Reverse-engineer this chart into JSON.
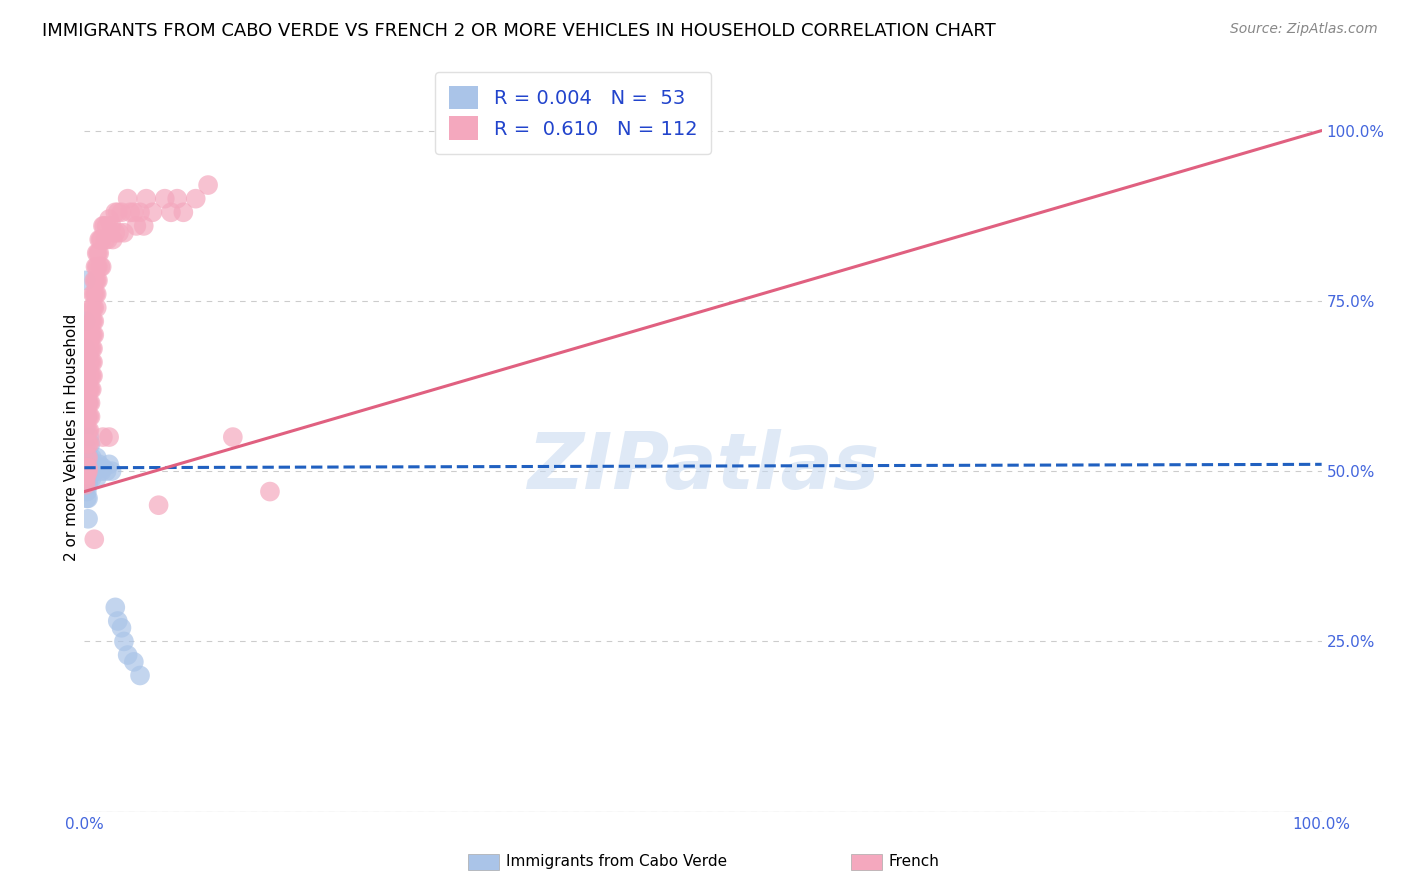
{
  "title": "IMMIGRANTS FROM CABO VERDE VS FRENCH 2 OR MORE VEHICLES IN HOUSEHOLD CORRELATION CHART",
  "source": "Source: ZipAtlas.com",
  "ylabel": "2 or more Vehicles in Household",
  "watermark": "ZIPatlas",
  "blue_R": 0.004,
  "blue_N": 53,
  "pink_R": 0.61,
  "pink_N": 112,
  "blue_color": "#aac4e8",
  "pink_color": "#f4a8be",
  "blue_line_color": "#2060c0",
  "pink_line_color": "#e06080",
  "blue_trend": [
    0.0,
    1.0,
    0.505,
    0.51
  ],
  "pink_trend": [
    0.0,
    1.0,
    0.47,
    1.0
  ],
  "xlim": [
    0.0,
    1.0
  ],
  "ylim": [
    0.0,
    1.1
  ],
  "ytick_positions": [
    0.0,
    0.25,
    0.5,
    0.75,
    1.0
  ],
  "ytick_labels": [
    "",
    "25.0%",
    "50.0%",
    "75.0%",
    "100.0%"
  ],
  "grid_color": "#cccccc",
  "background_color": "#ffffff",
  "title_fontsize": 13,
  "axis_label_color": "#4466dd",
  "blue_scatter_x": [
    0.001,
    0.001,
    0.001,
    0.001,
    0.001,
    0.001,
    0.001,
    0.001,
    0.001,
    0.001,
    0.002,
    0.002,
    0.002,
    0.002,
    0.002,
    0.002,
    0.002,
    0.002,
    0.002,
    0.002,
    0.002,
    0.003,
    0.003,
    0.003,
    0.003,
    0.003,
    0.003,
    0.003,
    0.004,
    0.004,
    0.004,
    0.005,
    0.005,
    0.006,
    0.006,
    0.007,
    0.008,
    0.009,
    0.01,
    0.01,
    0.012,
    0.014,
    0.015,
    0.018,
    0.02,
    0.022,
    0.025,
    0.027,
    0.03,
    0.032,
    0.035,
    0.04,
    0.045
  ],
  "blue_scatter_y": [
    0.78,
    0.72,
    0.68,
    0.64,
    0.6,
    0.56,
    0.52,
    0.505,
    0.5,
    0.495,
    0.65,
    0.63,
    0.58,
    0.52,
    0.505,
    0.5,
    0.49,
    0.485,
    0.47,
    0.46,
    0.5,
    0.67,
    0.6,
    0.52,
    0.5,
    0.48,
    0.46,
    0.43,
    0.55,
    0.52,
    0.49,
    0.54,
    0.5,
    0.52,
    0.49,
    0.51,
    0.5,
    0.505,
    0.52,
    0.49,
    0.51,
    0.5,
    0.505,
    0.5,
    0.51,
    0.5,
    0.3,
    0.28,
    0.27,
    0.25,
    0.23,
    0.22,
    0.2
  ],
  "pink_scatter_x": [
    0.001,
    0.001,
    0.001,
    0.001,
    0.001,
    0.001,
    0.002,
    0.002,
    0.002,
    0.002,
    0.002,
    0.002,
    0.002,
    0.002,
    0.003,
    0.003,
    0.003,
    0.003,
    0.003,
    0.003,
    0.003,
    0.003,
    0.003,
    0.003,
    0.003,
    0.004,
    0.004,
    0.004,
    0.004,
    0.004,
    0.004,
    0.004,
    0.004,
    0.004,
    0.005,
    0.005,
    0.005,
    0.005,
    0.005,
    0.005,
    0.005,
    0.005,
    0.006,
    0.006,
    0.006,
    0.006,
    0.006,
    0.006,
    0.006,
    0.007,
    0.007,
    0.007,
    0.007,
    0.007,
    0.007,
    0.007,
    0.008,
    0.008,
    0.008,
    0.008,
    0.008,
    0.008,
    0.009,
    0.009,
    0.009,
    0.01,
    0.01,
    0.01,
    0.01,
    0.01,
    0.011,
    0.011,
    0.011,
    0.012,
    0.012,
    0.013,
    0.013,
    0.014,
    0.014,
    0.015,
    0.015,
    0.016,
    0.017,
    0.018,
    0.019,
    0.02,
    0.02,
    0.022,
    0.023,
    0.025,
    0.025,
    0.027,
    0.028,
    0.03,
    0.032,
    0.035,
    0.037,
    0.04,
    0.042,
    0.045,
    0.048,
    0.05,
    0.055,
    0.06,
    0.065,
    0.07,
    0.075,
    0.08,
    0.09,
    0.1,
    0.12,
    0.15
  ],
  "pink_scatter_y": [
    0.505,
    0.5,
    0.495,
    0.49,
    0.485,
    0.48,
    0.6,
    0.58,
    0.56,
    0.54,
    0.52,
    0.505,
    0.5,
    0.495,
    0.68,
    0.66,
    0.64,
    0.62,
    0.6,
    0.58,
    0.56,
    0.54,
    0.52,
    0.505,
    0.5,
    0.7,
    0.68,
    0.66,
    0.64,
    0.62,
    0.6,
    0.58,
    0.56,
    0.54,
    0.72,
    0.7,
    0.68,
    0.66,
    0.64,
    0.62,
    0.6,
    0.58,
    0.74,
    0.72,
    0.7,
    0.68,
    0.66,
    0.64,
    0.62,
    0.76,
    0.74,
    0.72,
    0.7,
    0.68,
    0.66,
    0.64,
    0.78,
    0.76,
    0.74,
    0.72,
    0.7,
    0.4,
    0.8,
    0.78,
    0.76,
    0.82,
    0.8,
    0.78,
    0.76,
    0.74,
    0.82,
    0.8,
    0.78,
    0.84,
    0.82,
    0.84,
    0.8,
    0.84,
    0.8,
    0.86,
    0.55,
    0.86,
    0.84,
    0.86,
    0.84,
    0.87,
    0.55,
    0.86,
    0.84,
    0.88,
    0.85,
    0.88,
    0.85,
    0.88,
    0.85,
    0.9,
    0.88,
    0.88,
    0.86,
    0.88,
    0.86,
    0.9,
    0.88,
    0.45,
    0.9,
    0.88,
    0.9,
    0.88,
    0.9,
    0.92,
    0.55,
    0.47
  ]
}
